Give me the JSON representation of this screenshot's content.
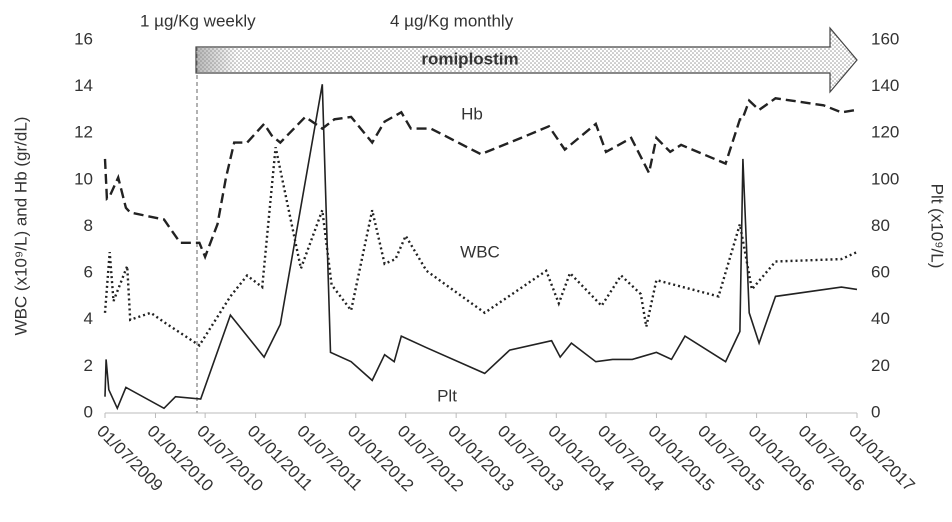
{
  "chart_data": {
    "type": "line",
    "ylabel": "WBC (x10⁹/L) and Hb (gr/dL)",
    "y2label": "Plt (x10⁹/L)",
    "xlim": [
      "2009-07-01",
      "2017-01-01"
    ],
    "xticks": [
      {
        "value": "2009-07-01",
        "label": "01/07/2009"
      },
      {
        "value": "2010-01-01",
        "label": "01/01/2010"
      },
      {
        "value": "2010-07-01",
        "label": "01/07/2010"
      },
      {
        "value": "2011-01-01",
        "label": "01/01/2011"
      },
      {
        "value": "2011-07-01",
        "label": "01/07/2011"
      },
      {
        "value": "2012-01-01",
        "label": "01/01/2012"
      },
      {
        "value": "2012-07-01",
        "label": "01/07/2012"
      },
      {
        "value": "2013-01-01",
        "label": "01/01/2013"
      },
      {
        "value": "2013-07-01",
        "label": "01/07/2013"
      },
      {
        "value": "2014-01-01",
        "label": "01/01/2014"
      },
      {
        "value": "2014-07-01",
        "label": "01/07/2014"
      },
      {
        "value": "2015-01-01",
        "label": "01/01/2015"
      },
      {
        "value": "2015-07-01",
        "label": "01/07/2015"
      },
      {
        "value": "2016-01-01",
        "label": "01/01/2016"
      },
      {
        "value": "2016-07-01",
        "label": "01/07/2016"
      },
      {
        "value": "2017-01-01",
        "label": "01/01/2017"
      }
    ],
    "ylim": [
      0,
      16
    ],
    "yticks": [
      0,
      2,
      4,
      6,
      8,
      10,
      12,
      14,
      16
    ],
    "y2lim": [
      0,
      160
    ],
    "y2ticks": [
      0,
      20,
      40,
      60,
      80,
      100,
      120,
      140,
      160
    ],
    "annotations": [
      "1 µg/Kg weekly",
      "4 µg/Kg monthly",
      "romiplostim"
    ],
    "series": [
      {
        "name": "Hb",
        "color": "#222222",
        "line_style": "dashed",
        "x": [
          "2009-07-01",
          "2009-07-08",
          "2009-07-18",
          "2009-08-18",
          "2009-09-15",
          "2009-10-01",
          "2010-02-01",
          "2010-04-01",
          "2010-06-10",
          "2010-07-01",
          "2010-08-15",
          "2010-09-15",
          "2010-10-15",
          "2010-12-01",
          "2011-02-01",
          "2011-03-01",
          "2011-04-01",
          "2011-07-01",
          "2011-09-01",
          "2011-10-15",
          "2011-12-15",
          "2012-03-01",
          "2012-04-15",
          "2012-06-15",
          "2012-07-20",
          "2012-10-01",
          "2013-04-01",
          "2013-09-15",
          "2013-12-05",
          "2014-02-01",
          "2014-05-25",
          "2014-07-01",
          "2014-09-01",
          "2014-10-01",
          "2014-12-05",
          "2015-01-01",
          "2015-02-20",
          "2015-04-01",
          "2015-09-10",
          "2015-11-01",
          "2015-11-10",
          "2015-12-05",
          "2016-01-10",
          "2016-03-10",
          "2016-09-01",
          "2016-11-05",
          "2017-01-01"
        ],
        "values": [
          10.9,
          9.2,
          9.3,
          10.1,
          8.8,
          8.6,
          8.3,
          7.3,
          7.3,
          6.7,
          8.1,
          10.1,
          11.6,
          11.6,
          12.4,
          11.9,
          11.6,
          12.7,
          12.2,
          12.6,
          12.7,
          11.6,
          12.5,
          12.9,
          12.2,
          12.2,
          11.1,
          11.9,
          12.3,
          11.3,
          12.4,
          11.2,
          11.6,
          11.8,
          10.3,
          11.8,
          11.2,
          11.5,
          10.7,
          12.6,
          12.6,
          13.4,
          13.0,
          13.5,
          13.2,
          12.9,
          13.0
        ]
      },
      {
        "name": "WBC",
        "color": "#222222",
        "line_style": "dotted",
        "x": [
          "2009-07-01",
          "2009-07-18",
          "2009-08-01",
          "2009-09-20",
          "2009-10-01",
          "2009-12-15",
          "2010-02-01",
          "2010-06-10",
          "2010-10-01",
          "2010-12-01",
          "2011-01-25",
          "2011-03-15",
          "2011-06-15",
          "2011-09-01",
          "2011-10-05",
          "2011-12-15",
          "2012-03-01",
          "2012-04-15",
          "2012-05-25",
          "2012-07-01",
          "2012-09-15",
          "2013-04-15",
          "2013-11-25",
          "2014-01-10",
          "2014-02-20",
          "2014-06-15",
          "2014-08-25",
          "2014-11-05",
          "2014-11-25",
          "2015-01-01",
          "2015-08-15",
          "2015-11-01",
          "2015-12-15",
          "2016-03-10",
          "2016-11-05",
          "2017-01-01"
        ],
        "values": [
          4.3,
          6.9,
          4.8,
          6.3,
          4.0,
          4.3,
          3.9,
          2.9,
          5.0,
          5.9,
          5.4,
          11.4,
          6.2,
          8.7,
          5.5,
          4.4,
          8.7,
          6.4,
          6.6,
          7.6,
          6.1,
          4.3,
          6.1,
          4.7,
          6.0,
          4.6,
          5.9,
          5.1,
          3.7,
          5.7,
          5.0,
          8.1,
          5.3,
          6.5,
          6.6,
          6.9
        ]
      },
      {
        "name": "Plt",
        "color": "#222222",
        "line_style": "solid",
        "axis": "y2",
        "x": [
          "2009-07-01",
          "2009-07-05",
          "2009-07-15",
          "2009-08-15",
          "2009-09-15",
          "2010-02-01",
          "2010-03-15",
          "2010-06-15",
          "2010-10-01",
          "2011-02-01",
          "2011-04-01",
          "2011-09-01",
          "2011-10-01",
          "2011-12-15",
          "2012-03-01",
          "2012-04-15",
          "2012-05-20",
          "2012-06-15",
          "2012-09-15",
          "2013-04-15",
          "2013-07-15",
          "2013-12-15",
          "2014-01-15",
          "2014-02-25",
          "2014-05-25",
          "2014-07-25",
          "2014-10-05",
          "2015-01-01",
          "2015-02-25",
          "2015-04-15",
          "2015-09-10",
          "2015-11-01",
          "2015-11-12",
          "2015-12-05",
          "2016-01-10",
          "2016-03-10",
          "2016-11-05",
          "2017-01-01"
        ],
        "values": [
          7,
          23,
          10,
          2,
          11,
          2,
          7,
          6,
          42,
          24,
          38,
          141,
          26,
          22,
          14,
          25,
          22,
          33,
          28,
          17,
          27,
          31,
          24,
          30,
          22,
          23,
          23,
          26,
          23,
          33,
          22,
          35,
          109,
          43,
          30,
          50,
          54,
          53
        ]
      }
    ]
  }
}
